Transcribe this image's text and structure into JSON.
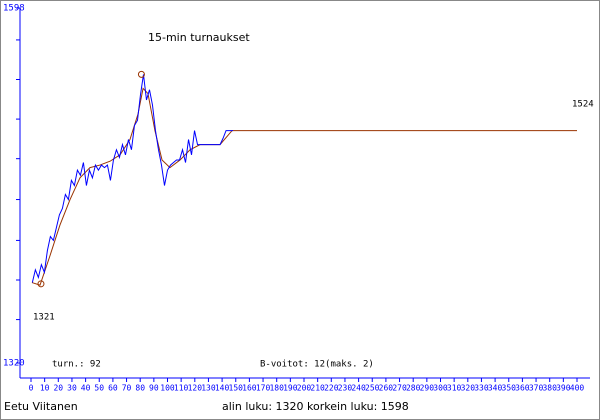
{
  "chart_data": {
    "type": "line",
    "title": "15-min turnaukset",
    "annotations": [
      "1524",
      "1321",
      "turn.: 92",
      "B-voitot: 12(maks. 2)"
    ],
    "footer_left": "Eetu Viitanen",
    "footer_right": "alin luku: 1320  korkein luku: 1598",
    "xlim": [
      0,
      400
    ],
    "xticks": [
      0,
      10,
      20,
      30,
      40,
      50,
      60,
      70,
      80,
      90,
      100,
      110,
      120,
      130,
      140,
      150,
      160,
      170,
      180,
      190,
      200,
      210,
      220,
      230,
      240,
      250,
      260,
      270,
      280,
      290,
      300,
      310,
      320,
      330,
      340,
      350,
      360,
      370,
      380,
      390,
      400
    ],
    "ylim": [
      1320,
      1598
    ],
    "yticks": [
      1320,
      1598
    ],
    "minor_yticks": [
      1354,
      1385,
      1416,
      1448,
      1480,
      1511,
      1542,
      1573
    ],
    "axis_color": "#0000ff",
    "series": [
      {
        "color": "#0000ff",
        "x": [
          1,
          3.2,
          5.4,
          7.6,
          9.8,
          12,
          14.2,
          16.4,
          18.6,
          20.8,
          23,
          25.2,
          27.4,
          29.6,
          31.8,
          34,
          36.2,
          38.4,
          40.6,
          42.8,
          45,
          47.2,
          49.4,
          51.6,
          53.8,
          56,
          58.2,
          60.4,
          62.6,
          64.8,
          67,
          69.2,
          71.4,
          73.6,
          75.8,
          78,
          80.2,
          82.4,
          84.6,
          86.8,
          89,
          91.2,
          93.4,
          95.6,
          97.8,
          100,
          102.2,
          104.4,
          106.6,
          108.8,
          111,
          113.2,
          115.4,
          117.6,
          119.8,
          122,
          123.8,
          127.5,
          131.1,
          134.8,
          138.5,
          140.7,
          142.9,
          148
        ],
        "values": [
          1383,
          1393,
          1387,
          1397,
          1391,
          1408,
          1419,
          1416,
          1426,
          1436,
          1441,
          1452,
          1448,
          1463,
          1459,
          1471,
          1467,
          1477,
          1459,
          1471,
          1465,
          1475,
          1471,
          1475,
          1473,
          1475,
          1463,
          1479,
          1487,
          1481,
          1491,
          1483,
          1495,
          1487,
          1506,
          1510,
          1530,
          1546,
          1526,
          1534,
          1522,
          1502,
          1487,
          1475,
          1459,
          1471,
          1475,
          1477,
          1479,
          1479,
          1487,
          1477,
          1495,
          1483,
          1502,
          1491,
          1491,
          1491,
          1491,
          1491,
          1491,
          1496,
          1502,
          1502
        ]
      },
      {
        "color": "#993300",
        "x": [
          0.7,
          6.6,
          13.9,
          21.2,
          28.6,
          35.9,
          43.2,
          50.5,
          57.9,
          65.2,
          72.5,
          78.4,
          82.1,
          85.7,
          90.8,
          96,
          101.8,
          109.2,
          116.5,
          123.8,
          138.5,
          147.3,
          400
        ],
        "values": [
          1383,
          1381,
          1404,
          1428,
          1448,
          1465,
          1473,
          1475,
          1478,
          1483,
          1495,
          1515,
          1535,
          1531,
          1502,
          1479,
          1473,
          1479,
          1487,
          1491,
          1491,
          1502,
          1502
        ]
      }
    ],
    "markers": {
      "color": "#993300",
      "x": [
        7.3,
        80.9
      ],
      "values": [
        1382,
        1546
      ]
    }
  }
}
